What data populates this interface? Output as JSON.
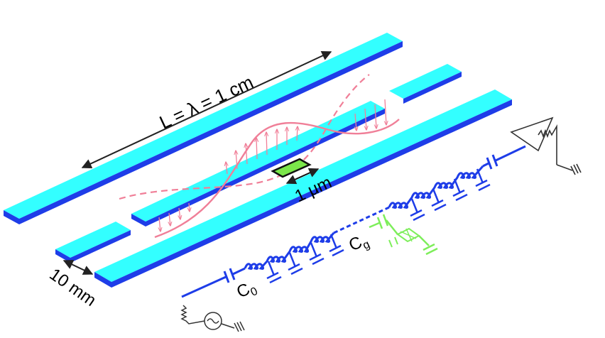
{
  "labels": {
    "length": "L = λ = 1 cm",
    "junction_size": "1 μm",
    "gap": "10 mm",
    "c0": "C",
    "c0_sub": "0",
    "cg": "C",
    "cg_sub": "g"
  },
  "colors": {
    "strip_top": "#33ffff",
    "strip_edge": "#1e3de8",
    "circuit": "#1e3de8",
    "qubit_circuit": "#7dee5a",
    "wave": "#f07f98",
    "junction_box": "#7be64a",
    "arrow": "#222222"
  }
}
